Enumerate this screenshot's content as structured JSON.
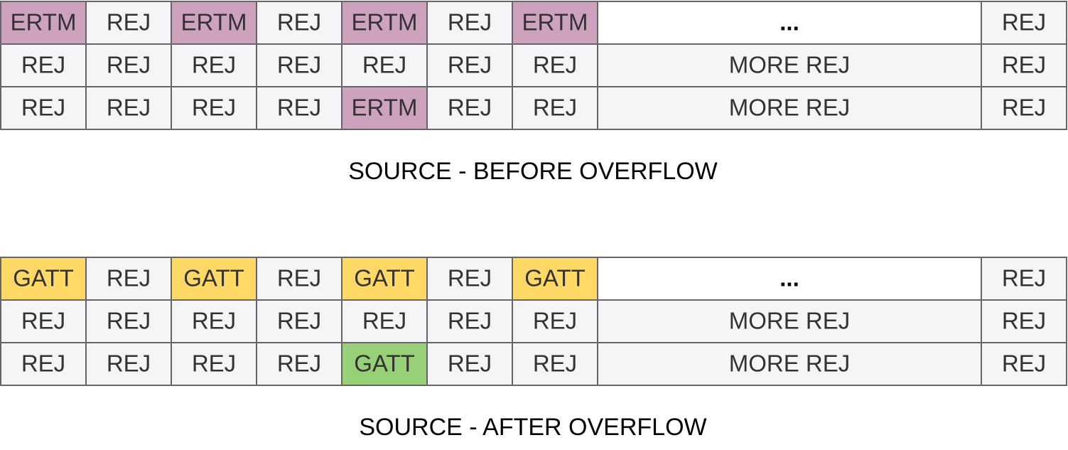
{
  "grids": [
    {
      "rows": [
        [
          {
            "text": "ERTM",
            "fill": "#cda2be"
          },
          {
            "text": "REJ",
            "fill": "#f5f4f6"
          },
          {
            "text": "ERTM",
            "fill": "#cda2be"
          },
          {
            "text": "REJ",
            "fill": "#f5f4f6"
          },
          {
            "text": "ERTM",
            "fill": "#cda2be"
          },
          {
            "text": "REJ",
            "fill": "#f5f4f6"
          },
          {
            "text": "ERTM",
            "fill": "#cda2be"
          },
          {
            "text": "...",
            "fill": "#ffffff"
          },
          {
            "text": "REJ",
            "fill": "#f5f4f6"
          }
        ],
        [
          {
            "text": "REJ",
            "fill": "#f5f4f6"
          },
          {
            "text": "REJ",
            "fill": "#f5f4f6"
          },
          {
            "text": "REJ",
            "fill": "#f5f4f6"
          },
          {
            "text": "REJ",
            "fill": "#f5f4f6"
          },
          {
            "text": "REJ",
            "fill": "#f5f4f6"
          },
          {
            "text": "REJ",
            "fill": "#f5f4f6"
          },
          {
            "text": "REJ",
            "fill": "#f5f4f6"
          },
          {
            "text": "MORE REJ",
            "fill": "#f5f4f6"
          },
          {
            "text": "REJ",
            "fill": "#f5f4f6"
          }
        ],
        [
          {
            "text": "REJ",
            "fill": "#f5f4f6"
          },
          {
            "text": "REJ",
            "fill": "#f5f4f6"
          },
          {
            "text": "REJ",
            "fill": "#f5f4f6"
          },
          {
            "text": "REJ",
            "fill": "#f5f4f6"
          },
          {
            "text": "ERTM",
            "fill": "#cda2be"
          },
          {
            "text": "REJ",
            "fill": "#f5f4f6"
          },
          {
            "text": "REJ",
            "fill": "#f5f4f6"
          },
          {
            "text": "MORE REJ",
            "fill": "#f5f4f6"
          },
          {
            "text": "REJ",
            "fill": "#f5f4f6"
          }
        ]
      ],
      "caption": "SOURCE - BEFORE OVERFLOW"
    },
    {
      "rows": [
        [
          {
            "text": "GATT",
            "fill": "#ffd966"
          },
          {
            "text": "REJ",
            "fill": "#f5f4f6"
          },
          {
            "text": "GATT",
            "fill": "#ffd966"
          },
          {
            "text": "REJ",
            "fill": "#f5f4f6"
          },
          {
            "text": "GATT",
            "fill": "#ffd966"
          },
          {
            "text": "REJ",
            "fill": "#f5f4f6"
          },
          {
            "text": "GATT",
            "fill": "#ffd966"
          },
          {
            "text": "...",
            "fill": "#ffffff"
          },
          {
            "text": "REJ",
            "fill": "#f5f4f6"
          }
        ],
        [
          {
            "text": "REJ",
            "fill": "#f5f4f6"
          },
          {
            "text": "REJ",
            "fill": "#f5f4f6"
          },
          {
            "text": "REJ",
            "fill": "#f5f4f6"
          },
          {
            "text": "REJ",
            "fill": "#f5f4f6"
          },
          {
            "text": "REJ",
            "fill": "#f5f4f6"
          },
          {
            "text": "REJ",
            "fill": "#f5f4f6"
          },
          {
            "text": "REJ",
            "fill": "#f5f4f6"
          },
          {
            "text": "MORE REJ",
            "fill": "#f5f4f6"
          },
          {
            "text": "REJ",
            "fill": "#f5f4f6"
          }
        ],
        [
          {
            "text": "REJ",
            "fill": "#f5f4f6"
          },
          {
            "text": "REJ",
            "fill": "#f5f4f6"
          },
          {
            "text": "REJ",
            "fill": "#f5f4f6"
          },
          {
            "text": "REJ",
            "fill": "#f5f4f6"
          },
          {
            "text": "GATT",
            "fill": "#97d077"
          },
          {
            "text": "REJ",
            "fill": "#f5f4f6"
          },
          {
            "text": "REJ",
            "fill": "#f5f4f6"
          },
          {
            "text": "MORE REJ",
            "fill": "#f5f4f6"
          },
          {
            "text": "REJ",
            "fill": "#f5f4f6"
          }
        ]
      ],
      "caption": "SOURCE - AFTER OVERFLOW"
    }
  ]
}
